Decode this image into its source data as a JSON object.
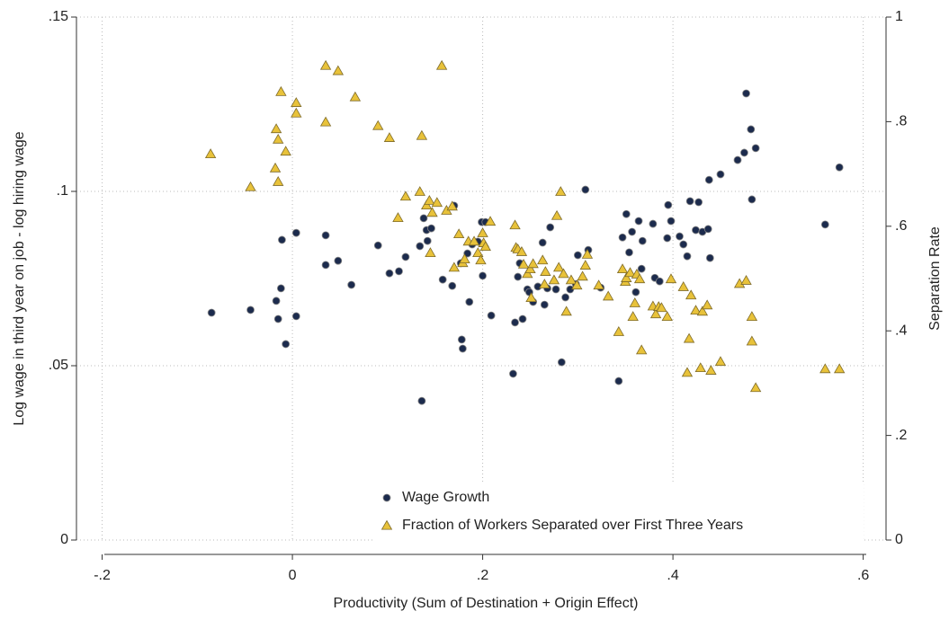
{
  "chart_data": {
    "type": "scatter",
    "x_label": "Productivity (Sum of Destination + Origin Effect)",
    "y_label": "Log wage in third year on job - log hiring wage",
    "y2_label": "Separation Rate",
    "xlim": [
      -0.227,
      0.624
    ],
    "xticks": [
      {
        "value": -0.2,
        "label": "-.2"
      },
      0,
      {
        "value": 0.2,
        "label": ".2"
      },
      {
        "value": 0.4,
        "label": ".4"
      },
      {
        "value": 0.6,
        "label": ".6"
      }
    ],
    "ylim": [
      0,
      0.15
    ],
    "yticks": [
      0,
      {
        "value": 0.05,
        "label": ".05"
      },
      {
        "value": 0.1,
        "label": ".1"
      },
      {
        "value": 0.15,
        "label": ".15"
      }
    ],
    "y2lim": [
      0,
      1
    ],
    "y2ticks": [
      0,
      {
        "value": 0.2,
        "label": ".2"
      },
      {
        "value": 0.4,
        "label": ".4"
      },
      {
        "value": 0.6,
        "label": ".6"
      },
      {
        "value": 0.8,
        "label": ".8"
      },
      1
    ],
    "grid": true,
    "legend": "bottom",
    "series": [
      {
        "name": "Wage Growth",
        "color": "#1c2b4d",
        "marker": "circle",
        "x": [
          -0.085,
          -0.044,
          -0.017,
          -0.015,
          -0.012,
          -0.011,
          -0.007,
          0.004,
          0.004,
          0.035,
          0.035,
          0.048,
          0.062,
          0.09,
          0.102,
          0.112,
          0.119,
          0.134,
          0.136,
          0.138,
          0.141,
          0.142,
          0.146,
          0.158,
          0.168,
          0.17,
          0.177,
          0.178,
          0.179,
          0.184,
          0.186,
          0.189,
          0.195,
          0.199,
          0.203,
          0.2,
          0.209,
          0.232,
          0.234,
          0.237,
          0.239,
          0.242,
          0.247,
          0.249,
          0.253,
          0.258,
          0.263,
          0.265,
          0.268,
          0.271,
          0.277,
          0.283,
          0.287,
          0.292,
          0.298,
          0.3,
          0.308,
          0.311,
          0.324,
          0.343,
          0.347,
          0.351,
          0.354,
          0.357,
          0.361,
          0.364,
          0.367,
          0.368,
          0.379,
          0.381,
          0.386,
          0.394,
          0.395,
          0.398,
          0.407,
          0.411,
          0.415,
          0.418,
          0.424,
          0.427,
          0.431,
          0.437,
          0.438,
          0.439,
          0.45,
          0.468,
          0.475,
          0.477,
          0.482,
          0.483,
          0.487,
          0.56,
          0.575
        ],
        "values": [
          0.0652,
          0.066,
          0.0686,
          0.0634,
          0.0722,
          0.0861,
          0.0562,
          0.0642,
          0.0881,
          0.0874,
          0.0789,
          0.0801,
          0.0732,
          0.0845,
          0.0765,
          0.0771,
          0.0812,
          0.0843,
          0.0399,
          0.0923,
          0.0889,
          0.0858,
          0.0894,
          0.0747,
          0.0729,
          0.0959,
          0.0794,
          0.0575,
          0.0549,
          0.0822,
          0.0683,
          0.0848,
          0.0856,
          0.0912,
          0.0912,
          0.0758,
          0.0644,
          0.0477,
          0.0624,
          0.0755,
          0.0794,
          0.0634,
          0.0719,
          0.0711,
          0.0683,
          0.0727,
          0.0853,
          0.0675,
          0.0722,
          0.0897,
          0.0719,
          0.051,
          0.0696,
          0.0719,
          0.0734,
          0.0817,
          0.1005,
          0.0832,
          0.0724,
          0.0456,
          0.0868,
          0.0935,
          0.0825,
          0.0884,
          0.0711,
          0.0915,
          0.0778,
          0.0858,
          0.0907,
          0.0752,
          0.0742,
          0.0866,
          0.0961,
          0.0915,
          0.0871,
          0.0848,
          0.0814,
          0.0972,
          0.0889,
          0.0969,
          0.0884,
          0.0892,
          0.1033,
          0.0809,
          0.1049,
          0.109,
          0.1111,
          0.1281,
          0.1178,
          0.0977,
          0.1124,
          0.0905,
          0.1069
        ]
      },
      {
        "name": "Fraction of Workers Separated over First Three Years",
        "color": "#e8c23a",
        "marker": "triangle",
        "axis": "y2",
        "x": [
          -0.086,
          -0.044,
          -0.018,
          -0.017,
          -0.015,
          -0.015,
          -0.012,
          -0.007,
          0.004,
          0.004,
          0.035,
          0.035,
          0.048,
          0.066,
          0.09,
          0.102,
          0.136,
          0.157,
          0.111,
          0.119,
          0.134,
          0.141,
          0.144,
          0.147,
          0.152,
          0.145,
          0.162,
          0.168,
          0.17,
          0.175,
          0.179,
          0.181,
          0.185,
          0.191,
          0.195,
          0.198,
          0.2,
          0.201,
          0.203,
          0.208,
          0.234,
          0.235,
          0.237,
          0.241,
          0.243,
          0.247,
          0.25,
          0.251,
          0.253,
          0.263,
          0.265,
          0.266,
          0.275,
          0.278,
          0.28,
          0.282,
          0.285,
          0.288,
          0.293,
          0.299,
          0.305,
          0.308,
          0.31,
          0.322,
          0.332,
          0.343,
          0.347,
          0.35,
          0.351,
          0.355,
          0.358,
          0.36,
          0.362,
          0.365,
          0.367,
          0.379,
          0.382,
          0.385,
          0.388,
          0.394,
          0.398,
          0.411,
          0.415,
          0.417,
          0.419,
          0.424,
          0.429,
          0.431,
          0.436,
          0.44,
          0.45,
          0.47,
          0.477,
          0.483,
          0.483,
          0.487,
          0.56,
          0.575
        ],
        "values": [
          0.738,
          0.675,
          0.711,
          0.786,
          0.766,
          0.685,
          0.857,
          0.743,
          0.836,
          0.816,
          0.907,
          0.799,
          0.897,
          0.847,
          0.792,
          0.769,
          0.773,
          0.907,
          0.616,
          0.657,
          0.666,
          0.64,
          0.649,
          0.626,
          0.645,
          0.549,
          0.63,
          0.638,
          0.521,
          0.585,
          0.53,
          0.537,
          0.571,
          0.571,
          0.549,
          0.535,
          0.587,
          0.568,
          0.561,
          0.609,
          0.602,
          0.559,
          0.556,
          0.551,
          0.527,
          0.509,
          0.518,
          0.463,
          0.528,
          0.535,
          0.489,
          0.513,
          0.497,
          0.62,
          0.521,
          0.666,
          0.509,
          0.437,
          0.497,
          0.487,
          0.504,
          0.525,
          0.546,
          0.487,
          0.466,
          0.398,
          0.518,
          0.494,
          0.501,
          0.511,
          0.427,
          0.453,
          0.508,
          0.499,
          0.363,
          0.447,
          0.432,
          0.446,
          0.444,
          0.427,
          0.499,
          0.484,
          0.32,
          0.385,
          0.468,
          0.439,
          0.329,
          0.437,
          0.449,
          0.324,
          0.341,
          0.49,
          0.496,
          0.427,
          0.38,
          0.291,
          0.327,
          0.327
        ]
      }
    ]
  }
}
